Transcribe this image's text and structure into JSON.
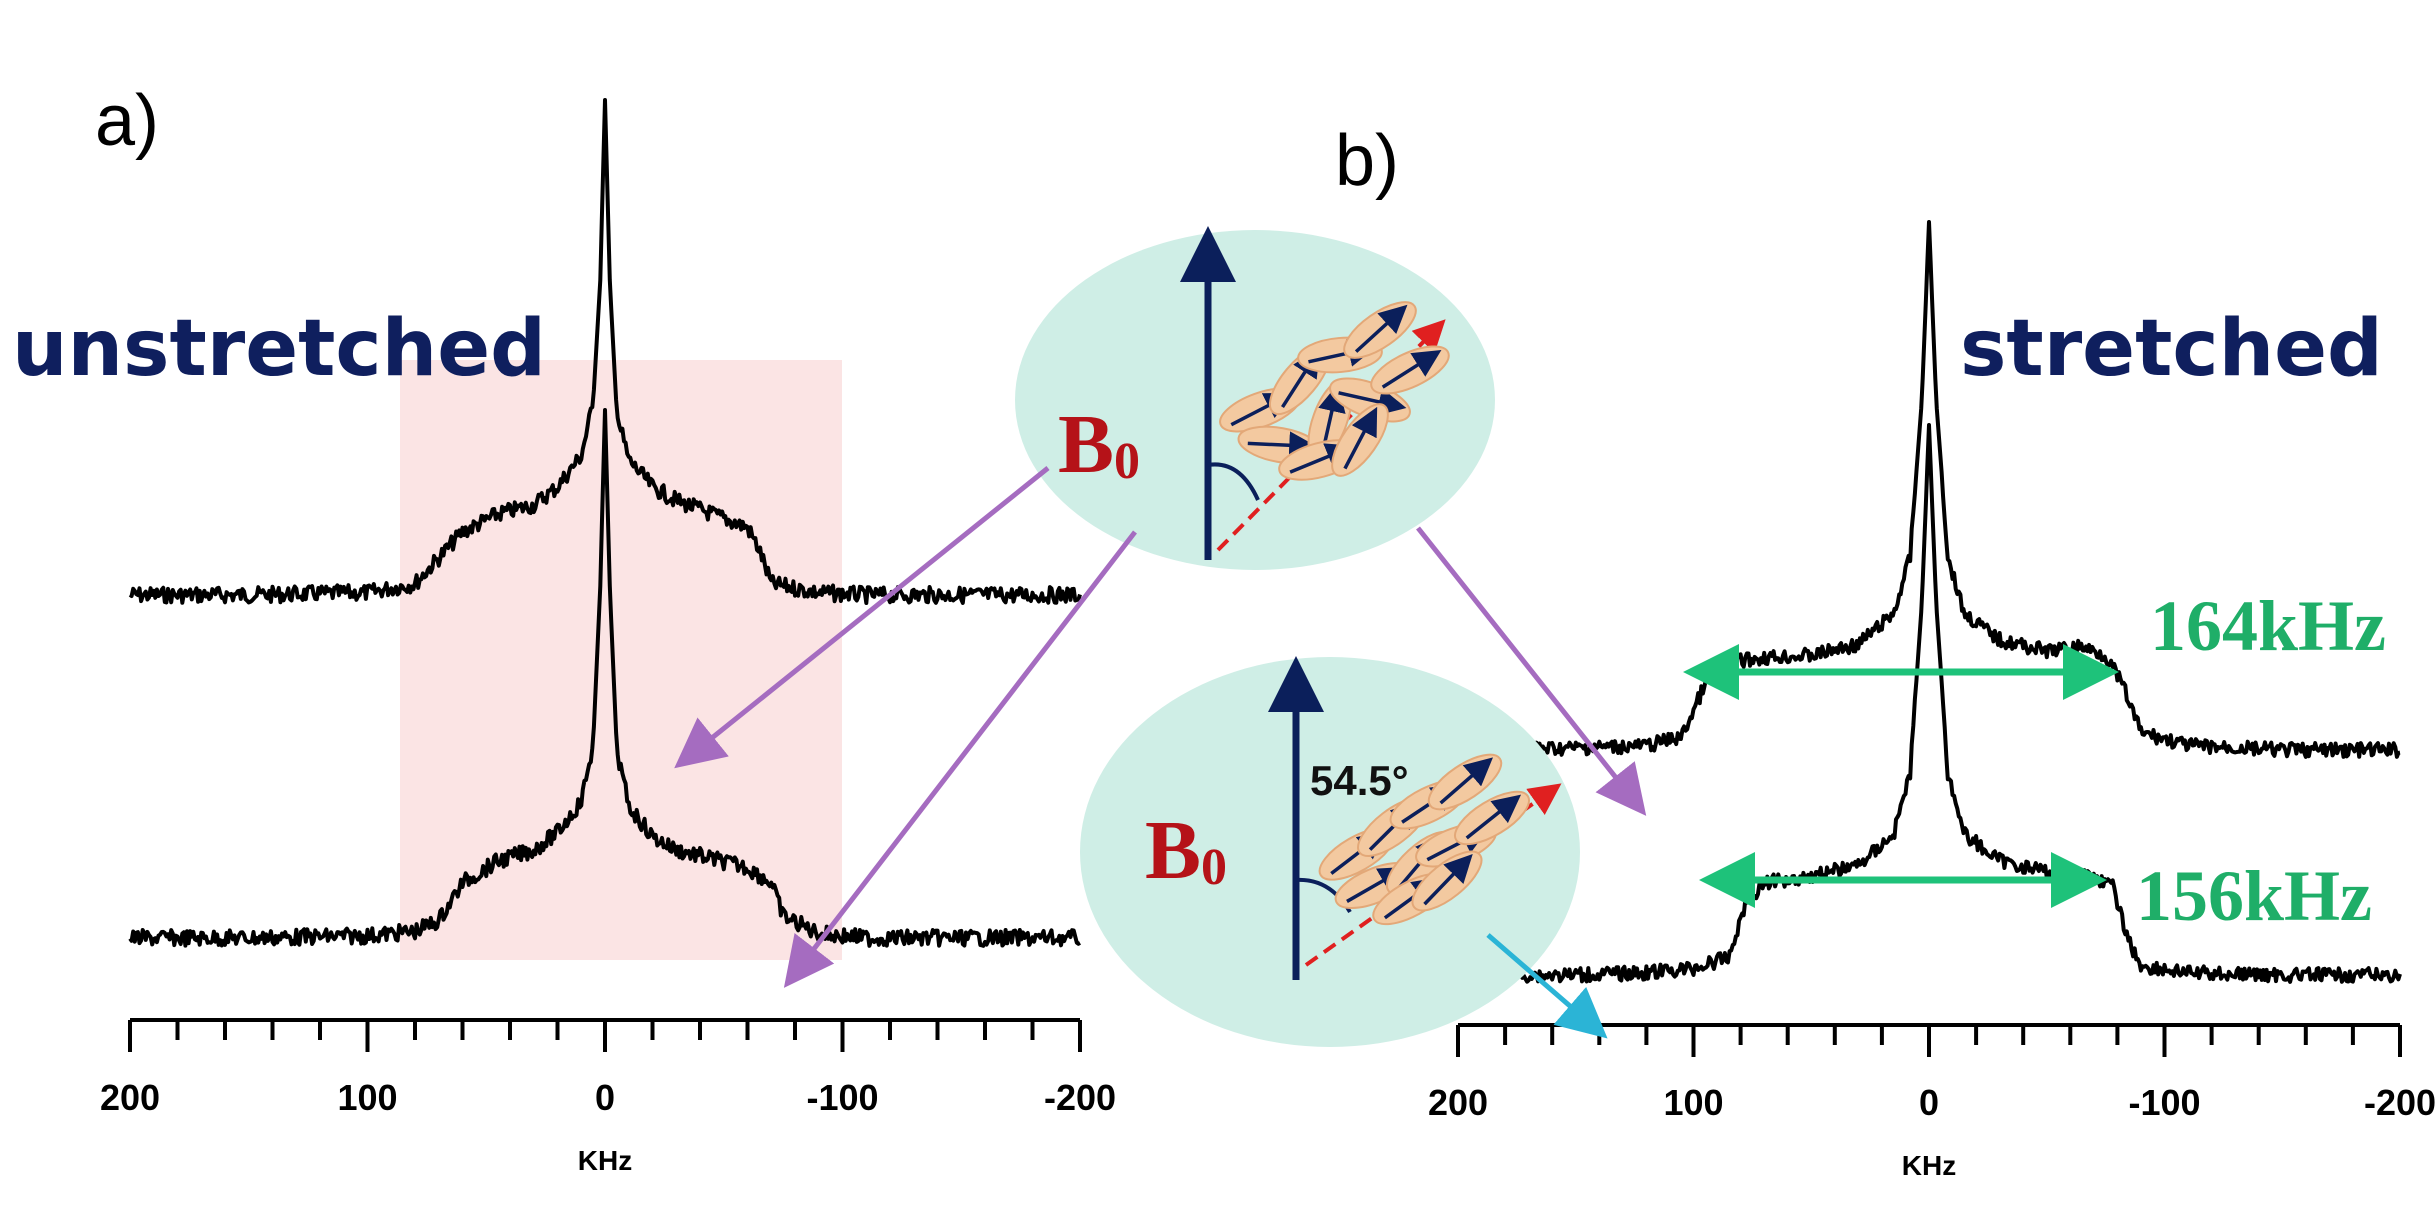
{
  "figure": {
    "panel_a_label": "a)",
    "panel_b_label": "b)",
    "unstretched_label": "unstretched",
    "stretched_label": "stretched",
    "width_top": "164kHz",
    "width_bottom": "156kHz",
    "b0_symbol": "B",
    "b0_subscript": "0",
    "magic_angle": "54.5°"
  },
  "colors": {
    "spectrum": "#000000",
    "title_navy": "#0f1f5e",
    "width_green": "#1fae68",
    "width_arrow": "#1ec27a",
    "pointer_purple": "#a56cc0",
    "pointer_cyan": "#2bb4d6",
    "highlight": "#fbe4e4",
    "ellipse": "#cfeee6",
    "b0_red": "#b51218",
    "field_navy": "#0b1f5b",
    "director_red": "#e02020",
    "molecule_tan": "#f3c9a0"
  },
  "chart_data": [
    {
      "type": "line",
      "panel": "a)",
      "xlabel": "KHz",
      "xlim": [
        200,
        -200
      ],
      "x_ticks": [
        200,
        100,
        0,
        -100,
        -200
      ],
      "x_tick_labels": [
        "200",
        "100",
        "0",
        "-100",
        "-200"
      ],
      "series": [
        {
          "name": "unstretched",
          "x": [
            200,
            150,
            100,
            80,
            60,
            45,
            30,
            20,
            10,
            5,
            2,
            0,
            -2,
            -5,
            -10,
            -20,
            -30,
            -45,
            -60,
            -65,
            -70,
            -90,
            -110,
            -150,
            -200
          ],
          "y": [
            0.0,
            0.0,
            0.01,
            0.05,
            0.28,
            0.36,
            0.4,
            0.48,
            0.62,
            0.85,
            1.4,
            2.2,
            1.4,
            0.8,
            0.6,
            0.48,
            0.42,
            0.36,
            0.3,
            0.2,
            0.05,
            0.01,
            0.0,
            0.0,
            0.0
          ]
        },
        {
          "name": "",
          "x": [
            200,
            150,
            100,
            80,
            70,
            60,
            45,
            30,
            20,
            10,
            5,
            2,
            0,
            -2,
            -5,
            -10,
            -20,
            -30,
            -45,
            -60,
            -70,
            -75,
            -90,
            -110,
            -150,
            -200
          ],
          "y": [
            0.0,
            0.0,
            0.01,
            0.03,
            0.08,
            0.25,
            0.35,
            0.4,
            0.48,
            0.62,
            0.88,
            1.6,
            2.4,
            1.6,
            0.85,
            0.6,
            0.46,
            0.4,
            0.36,
            0.32,
            0.25,
            0.1,
            0.02,
            0.0,
            0.0,
            0.0
          ]
        }
      ]
    },
    {
      "type": "line",
      "panel": "b)",
      "xlabel": "KHz",
      "xlim": [
        200,
        -200
      ],
      "x_ticks": [
        200,
        100,
        0,
        -100,
        -200
      ],
      "x_tick_labels": [
        "200",
        "100",
        "0",
        "-100",
        "-200"
      ],
      "series": [
        {
          "name": "stretched",
          "x": [
            200,
            150,
            120,
            105,
            95,
            85,
            70,
            50,
            30,
            15,
            8,
            3,
            0,
            -3,
            -8,
            -15,
            -30,
            -50,
            -65,
            -75,
            -82,
            -90,
            -110,
            -150,
            -200
          ],
          "y": [
            0.0,
            0.01,
            0.02,
            0.06,
            0.3,
            0.4,
            0.42,
            0.43,
            0.48,
            0.62,
            0.88,
            1.6,
            2.4,
            1.6,
            0.88,
            0.62,
            0.5,
            0.45,
            0.47,
            0.43,
            0.3,
            0.08,
            0.02,
            0.0,
            0.0
          ]
        },
        {
          "name": "",
          "x": [
            200,
            150,
            120,
            100,
            85,
            78,
            70,
            50,
            30,
            15,
            8,
            3,
            0,
            -3,
            -8,
            -15,
            -30,
            -50,
            -70,
            -78,
            -85,
            -90,
            -110,
            -150,
            -200
          ],
          "y": [
            0.0,
            0.0,
            0.01,
            0.03,
            0.08,
            0.32,
            0.42,
            0.45,
            0.5,
            0.64,
            0.92,
            1.7,
            2.5,
            1.7,
            0.92,
            0.64,
            0.52,
            0.47,
            0.45,
            0.4,
            0.15,
            0.04,
            0.01,
            0.0,
            0.0
          ]
        }
      ]
    }
  ]
}
